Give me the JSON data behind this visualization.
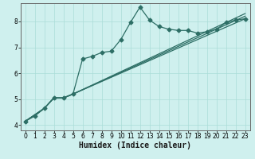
{
  "title": "",
  "xlabel": "Humidex (Indice chaleur)",
  "ylabel": "",
  "bg_color": "#cff0ee",
  "line_color": "#2d6e65",
  "grid_color": "#aaddd8",
  "xlim": [
    -0.5,
    23.5
  ],
  "ylim": [
    3.8,
    8.7
  ],
  "xticks": [
    0,
    1,
    2,
    3,
    4,
    5,
    6,
    7,
    8,
    9,
    10,
    11,
    12,
    13,
    14,
    15,
    16,
    17,
    18,
    19,
    20,
    21,
    22,
    23
  ],
  "yticks": [
    4,
    5,
    6,
    7,
    8
  ],
  "line1_x": [
    0,
    1,
    2,
    3,
    4,
    5,
    6,
    7,
    8,
    9,
    10,
    11,
    12,
    13,
    14,
    15,
    16,
    17,
    18,
    19,
    20,
    21,
    22,
    23
  ],
  "line1_y": [
    4.15,
    4.35,
    4.65,
    5.05,
    5.05,
    5.2,
    6.55,
    6.65,
    6.8,
    6.85,
    7.3,
    7.95,
    8.55,
    8.05,
    7.8,
    7.7,
    7.65,
    7.65,
    7.55,
    7.6,
    7.7,
    7.95,
    8.05,
    8.1
  ],
  "line2_x": [
    0,
    2,
    3,
    4,
    5,
    23
  ],
  "line2_y": [
    4.15,
    4.65,
    5.05,
    5.05,
    5.2,
    8.1
  ],
  "line3_x": [
    0,
    2,
    3,
    4,
    5,
    23
  ],
  "line3_y": [
    4.15,
    4.65,
    5.05,
    5.05,
    5.2,
    8.2
  ],
  "line4_x": [
    0,
    2,
    3,
    4,
    5,
    23
  ],
  "line4_y": [
    4.15,
    4.65,
    5.05,
    5.05,
    5.2,
    8.3
  ],
  "marker_size": 2.5,
  "line_width": 0.9,
  "xlabel_fontsize": 7,
  "tick_fontsize": 5.5
}
